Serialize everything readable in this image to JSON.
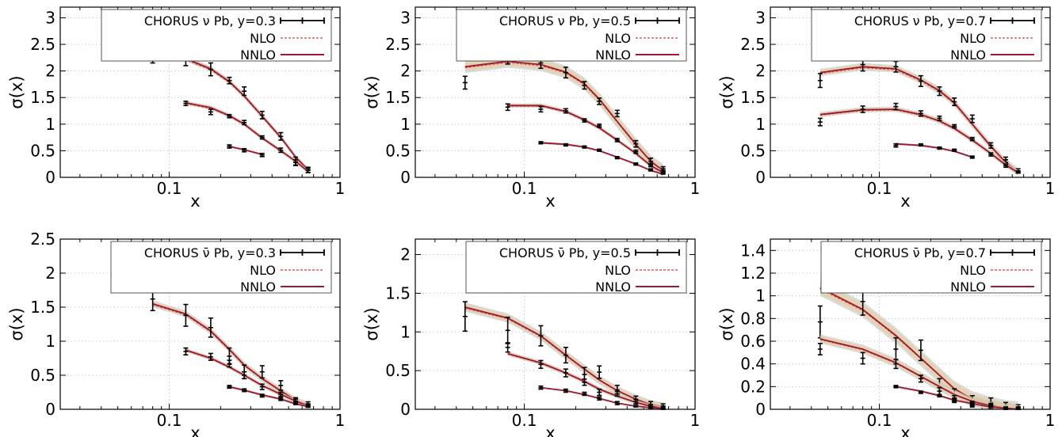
{
  "colors": {
    "data": "#000000",
    "nlo": "#d6605e",
    "nnlo": "#9b1b33",
    "nnlo_band": "#e7cfa6",
    "nlo_band": "#bdbdbd",
    "grid": "#c9c9c9"
  },
  "legend_lines": {
    "nlo": "NLO",
    "nnlo": "NNLO"
  },
  "chart_data": [
    {
      "type": "line",
      "title": "",
      "legend_data": "CHORUS ν Pb, y=0.3",
      "xlabel": "x",
      "ylabel": "σ(x)",
      "xscale": "log",
      "xlim": [
        0.023,
        1.0
      ],
      "ylim": [
        0,
        3.2
      ],
      "xticks": [
        "0.1",
        "1"
      ],
      "yticks": [
        "0",
        "0.5",
        "1",
        "1.5",
        "2",
        "2.5",
        "3"
      ],
      "grid": true,
      "legend_position": "top-right",
      "series": [
        {
          "x": [
            0.08,
            0.125,
            0.175,
            0.225,
            0.275,
            0.35,
            0.45,
            0.55,
            0.65
          ],
          "data": [
            2.27,
            2.2,
            2.03,
            1.82,
            1.62,
            1.17,
            0.77,
            0.3,
            0.14
          ],
          "err": [
            0.12,
            0.1,
            0.12,
            0.06,
            0.08,
            0.07,
            0.07,
            0.08,
            0.05
          ],
          "theory": [
            2.27,
            2.23,
            2.04,
            1.8,
            1.53,
            1.15,
            0.75,
            0.38,
            0.14
          ],
          "band": 0.05
        },
        {
          "x": [
            0.125,
            0.175,
            0.225,
            0.275,
            0.35,
            0.45,
            0.55,
            0.65
          ],
          "data": [
            1.39,
            1.23,
            1.15,
            1.03,
            0.75,
            0.51,
            0.28,
            0.13
          ],
          "err": [
            0.04,
            0.05,
            0.03,
            0.04,
            0.03,
            0.04,
            0.05,
            0.04
          ],
          "theory": [
            1.4,
            1.31,
            1.16,
            1.0,
            0.74,
            0.5,
            0.3,
            0.11
          ],
          "band": 0.04
        },
        {
          "x": [
            0.225,
            0.275,
            0.35
          ],
          "data": [
            0.58,
            0.51,
            0.42
          ],
          "err": [
            0.03,
            0.03,
            0.03
          ],
          "theory": [
            0.58,
            0.52,
            0.43
          ],
          "band": 0.02
        }
      ]
    },
    {
      "type": "line",
      "title": "",
      "legend_data": "CHORUS ν Pb, y=0.5",
      "xlabel": "x",
      "ylabel": "σ(x)",
      "xscale": "log",
      "xlim": [
        0.023,
        1.0
      ],
      "ylim": [
        0,
        3.2
      ],
      "xticks": [
        "0.1",
        "1"
      ],
      "yticks": [
        "0",
        "0.5",
        "1",
        "1.5",
        "2",
        "2.5",
        "3"
      ],
      "grid": true,
      "legend_position": "top-right",
      "series": [
        {
          "x": [
            0.045,
            0.08,
            0.125,
            0.175,
            0.225,
            0.275,
            0.35,
            0.45,
            0.55,
            0.65
          ],
          "data": [
            1.78,
            2.25,
            2.15,
            1.97,
            1.73,
            1.43,
            1.2,
            0.63,
            0.3,
            0.16
          ],
          "err": [
            0.12,
            0.12,
            0.1,
            0.1,
            0.07,
            0.06,
            0.06,
            0.06,
            0.06,
            0.04
          ],
          "theory": [
            2.08,
            2.18,
            2.12,
            1.98,
            1.76,
            1.47,
            1.05,
            0.62,
            0.3,
            0.13
          ],
          "band": 0.12
        },
        {
          "x": [
            0.08,
            0.125,
            0.175,
            0.225,
            0.275,
            0.35,
            0.45,
            0.55,
            0.65
          ],
          "data": [
            1.32,
            1.28,
            1.25,
            1.07,
            0.97,
            0.7,
            0.48,
            0.23,
            0.1
          ],
          "err": [
            0.06,
            0.05,
            0.04,
            0.03,
            0.03,
            0.03,
            0.03,
            0.03,
            0.03
          ],
          "theory": [
            1.35,
            1.35,
            1.24,
            1.08,
            0.93,
            0.7,
            0.45,
            0.22,
            0.09
          ],
          "band": 0.04
        },
        {
          "x": [
            0.125,
            0.175,
            0.225,
            0.275,
            0.35,
            0.45,
            0.55,
            0.65
          ],
          "data": [
            0.65,
            0.61,
            0.57,
            0.51,
            0.37,
            0.25,
            0.14,
            0.08
          ],
          "err": [
            0.02,
            0.02,
            0.02,
            0.02,
            0.02,
            0.02,
            0.02,
            0.02
          ],
          "theory": [
            0.65,
            0.62,
            0.57,
            0.5,
            0.38,
            0.25,
            0.13,
            0.06
          ],
          "band": 0.02
        }
      ]
    },
    {
      "type": "line",
      "title": "",
      "legend_data": "CHORUS ν Pb, y=0.7",
      "xlabel": "x",
      "ylabel": "σ(x)",
      "xscale": "log",
      "xlim": [
        0.023,
        1.0
      ],
      "ylim": [
        0,
        3.2
      ],
      "xticks": [
        "0.1",
        "1"
      ],
      "yticks": [
        "0",
        "0.5",
        "1",
        "1.5",
        "2",
        "2.5",
        "3"
      ],
      "grid": true,
      "legend_position": "top-right",
      "series": [
        {
          "x": [
            0.045,
            0.08,
            0.125,
            0.175,
            0.225,
            0.275,
            0.35,
            0.45,
            0.55,
            0.65
          ],
          "data": [
            1.82,
            2.12,
            2.08,
            1.81,
            1.62,
            1.42,
            1.1,
            0.6,
            0.33,
            0.12
          ],
          "err": [
            0.13,
            0.12,
            0.1,
            0.1,
            0.08,
            0.07,
            0.07,
            0.05,
            0.05,
            0.04
          ],
          "theory": [
            1.97,
            2.08,
            2.04,
            1.83,
            1.63,
            1.4,
            1.0,
            0.58,
            0.28,
            0.1
          ],
          "band": 0.07
        },
        {
          "x": [
            0.045,
            0.08,
            0.125,
            0.175,
            0.225,
            0.275,
            0.35,
            0.45,
            0.55,
            0.65
          ],
          "data": [
            1.04,
            1.28,
            1.33,
            1.2,
            1.11,
            0.96,
            0.72,
            0.43,
            0.22,
            0.1
          ],
          "err": [
            0.07,
            0.06,
            0.06,
            0.05,
            0.04,
            0.03,
            0.03,
            0.03,
            0.03,
            0.02
          ],
          "theory": [
            1.18,
            1.27,
            1.28,
            1.18,
            1.06,
            0.92,
            0.7,
            0.45,
            0.23,
            0.09
          ],
          "band": 0.05
        },
        {
          "x": [
            0.125,
            0.175,
            0.225,
            0.275,
            0.35
          ],
          "data": [
            0.6,
            0.61,
            0.55,
            0.51,
            0.38
          ],
          "err": [
            0.03,
            0.02,
            0.02,
            0.02,
            0.02
          ],
          "theory": [
            0.63,
            0.6,
            0.55,
            0.49,
            0.38
          ],
          "band": 0.02
        }
      ]
    },
    {
      "type": "line",
      "title": "",
      "legend_data": "CHORUS ν̄ Pb, y=0.3",
      "xlabel": "x",
      "ylabel": "σ(x)",
      "xscale": "log",
      "xlim": [
        0.023,
        1.0
      ],
      "ylim": [
        0,
        2.5
      ],
      "xticks": [
        "0.1",
        "1"
      ],
      "yticks": [
        "0",
        "0.5",
        "1",
        "1.5",
        "2",
        "2.5"
      ],
      "grid": true,
      "legend_position": "top-right",
      "series": [
        {
          "x": [
            0.08,
            0.125,
            0.175,
            0.225,
            0.275,
            0.35,
            0.45,
            0.55,
            0.65
          ],
          "data": [
            1.62,
            1.38,
            1.2,
            0.78,
            0.55,
            0.55,
            0.35,
            0.12,
            0.07
          ],
          "err": [
            0.17,
            0.16,
            0.14,
            0.12,
            0.1,
            0.09,
            0.07,
            0.05,
            0.04
          ],
          "theory": [
            1.55,
            1.4,
            1.15,
            0.88,
            0.65,
            0.45,
            0.27,
            0.13,
            0.06
          ],
          "band": 0.05
        },
        {
          "x": [
            0.125,
            0.175,
            0.225,
            0.275,
            0.35,
            0.45,
            0.55,
            0.65
          ],
          "data": [
            0.85,
            0.77,
            0.67,
            0.5,
            0.33,
            0.22,
            0.12,
            0.06
          ],
          "err": [
            0.05,
            0.05,
            0.05,
            0.05,
            0.04,
            0.03,
            0.03,
            0.02
          ],
          "theory": [
            0.87,
            0.75,
            0.62,
            0.5,
            0.35,
            0.22,
            0.12,
            0.05
          ],
          "band": 0.03
        },
        {
          "x": [
            0.225,
            0.275,
            0.35,
            0.45,
            0.55,
            0.65
          ],
          "data": [
            0.33,
            0.28,
            0.2,
            0.15,
            0.09,
            0.05
          ],
          "err": [
            0.02,
            0.02,
            0.02,
            0.02,
            0.02,
            0.02
          ],
          "theory": [
            0.33,
            0.28,
            0.21,
            0.15,
            0.08,
            0.04
          ],
          "band": 0.02
        }
      ]
    },
    {
      "type": "line",
      "title": "",
      "legend_data": "CHORUS ν̄ Pb, y=0.5",
      "xlabel": "x",
      "ylabel": "σ(x)",
      "xscale": "log",
      "xlim": [
        0.023,
        1.0
      ],
      "ylim": [
        0,
        2.2
      ],
      "xticks": [
        "0.1",
        "1"
      ],
      "yticks": [
        "0",
        "0.5",
        "1",
        "1.5",
        "2"
      ],
      "grid": true,
      "legend_position": "top-right",
      "series": [
        {
          "x": [
            0.045,
            0.08,
            0.125,
            0.175,
            0.225,
            0.275,
            0.35,
            0.45,
            0.55,
            0.65
          ],
          "data": [
            1.2,
            1.02,
            0.95,
            0.7,
            0.45,
            0.48,
            0.25,
            0.12,
            0.06,
            0.04
          ],
          "err": [
            0.19,
            0.17,
            0.13,
            0.1,
            0.09,
            0.08,
            0.06,
            0.05,
            0.04,
            0.03
          ],
          "theory": [
            1.32,
            1.18,
            0.95,
            0.7,
            0.52,
            0.38,
            0.24,
            0.13,
            0.06,
            0.03
          ],
          "band": 0.06
        },
        {
          "x": [
            0.08,
            0.125,
            0.175,
            0.225,
            0.275,
            0.35,
            0.45,
            0.55,
            0.65
          ],
          "data": [
            0.8,
            0.58,
            0.47,
            0.35,
            0.22,
            0.2,
            0.1,
            0.04,
            0.02
          ],
          "err": [
            0.06,
            0.05,
            0.05,
            0.04,
            0.04,
            0.03,
            0.03,
            0.02,
            0.02
          ],
          "theory": [
            0.72,
            0.6,
            0.47,
            0.36,
            0.26,
            0.17,
            0.09,
            0.04,
            0.01
          ],
          "band": 0.03
        },
        {
          "x": [
            0.125,
            0.175,
            0.225,
            0.275,
            0.35,
            0.45,
            0.55,
            0.65
          ],
          "data": [
            0.28,
            0.24,
            0.2,
            0.14,
            0.08,
            0.04,
            0.02,
            0.01
          ],
          "err": [
            0.02,
            0.02,
            0.02,
            0.02,
            0.02,
            0.01,
            0.01,
            0.01
          ],
          "theory": [
            0.28,
            0.24,
            0.19,
            0.14,
            0.08,
            0.04,
            0.02,
            0.01
          ],
          "band": 0.01
        }
      ]
    },
    {
      "type": "line",
      "title": "",
      "legend_data": "CHORUS ν̄ Pb, y=0.7",
      "xlabel": "x",
      "ylabel": "σ(x)",
      "xscale": "log",
      "xlim": [
        0.023,
        1.0
      ],
      "ylim": [
        0,
        1.5
      ],
      "xticks": [
        "0.1",
        "1"
      ],
      "yticks": [
        "0",
        "0.2",
        "0.4",
        "0.6",
        "0.8",
        "1",
        "1.2",
        "1.4"
      ],
      "grid": true,
      "legend_position": "top-right",
      "series": [
        {
          "x": [
            0.045,
            0.08,
            0.125,
            0.175,
            0.225,
            0.275,
            0.35,
            0.45,
            0.55,
            0.65
          ],
          "data": [
            0.77,
            0.95,
            0.53,
            0.52,
            0.2,
            0.12,
            0.07,
            0.06,
            0.03,
            0.02
          ],
          "err": [
            0.14,
            0.12,
            0.1,
            0.09,
            0.07,
            0.06,
            0.05,
            0.04,
            0.03,
            0.02
          ],
          "theory": [
            1.07,
            0.88,
            0.65,
            0.45,
            0.3,
            0.18,
            0.09,
            0.04,
            0.01,
            0.0
          ],
          "band": 0.07
        },
        {
          "x": [
            0.045,
            0.08,
            0.125,
            0.175,
            0.225,
            0.275,
            0.35,
            0.45,
            0.55,
            0.65
          ],
          "data": [
            0.53,
            0.45,
            0.4,
            0.27,
            0.16,
            0.1,
            0.05,
            0.03,
            0.01,
            0.01
          ],
          "err": [
            0.05,
            0.05,
            0.04,
            0.03,
            0.03,
            0.02,
            0.02,
            0.02,
            0.01,
            0.01
          ],
          "theory": [
            0.62,
            0.53,
            0.41,
            0.29,
            0.2,
            0.13,
            0.07,
            0.03,
            0.01,
            0.0
          ],
          "band": 0.04
        },
        {
          "x": [
            0.125,
            0.175,
            0.225,
            0.275,
            0.35,
            0.45,
            0.55,
            0.65
          ],
          "data": [
            0.2,
            0.15,
            0.12,
            0.08,
            0.05,
            0.03,
            0.01,
            0.01
          ],
          "err": [
            0.01,
            0.01,
            0.01,
            0.01,
            0.01,
            0.01,
            0.01,
            0.01
          ],
          "theory": [
            0.2,
            0.16,
            0.12,
            0.08,
            0.05,
            0.02,
            0.01,
            0.0
          ],
          "band": 0.01
        }
      ]
    }
  ]
}
